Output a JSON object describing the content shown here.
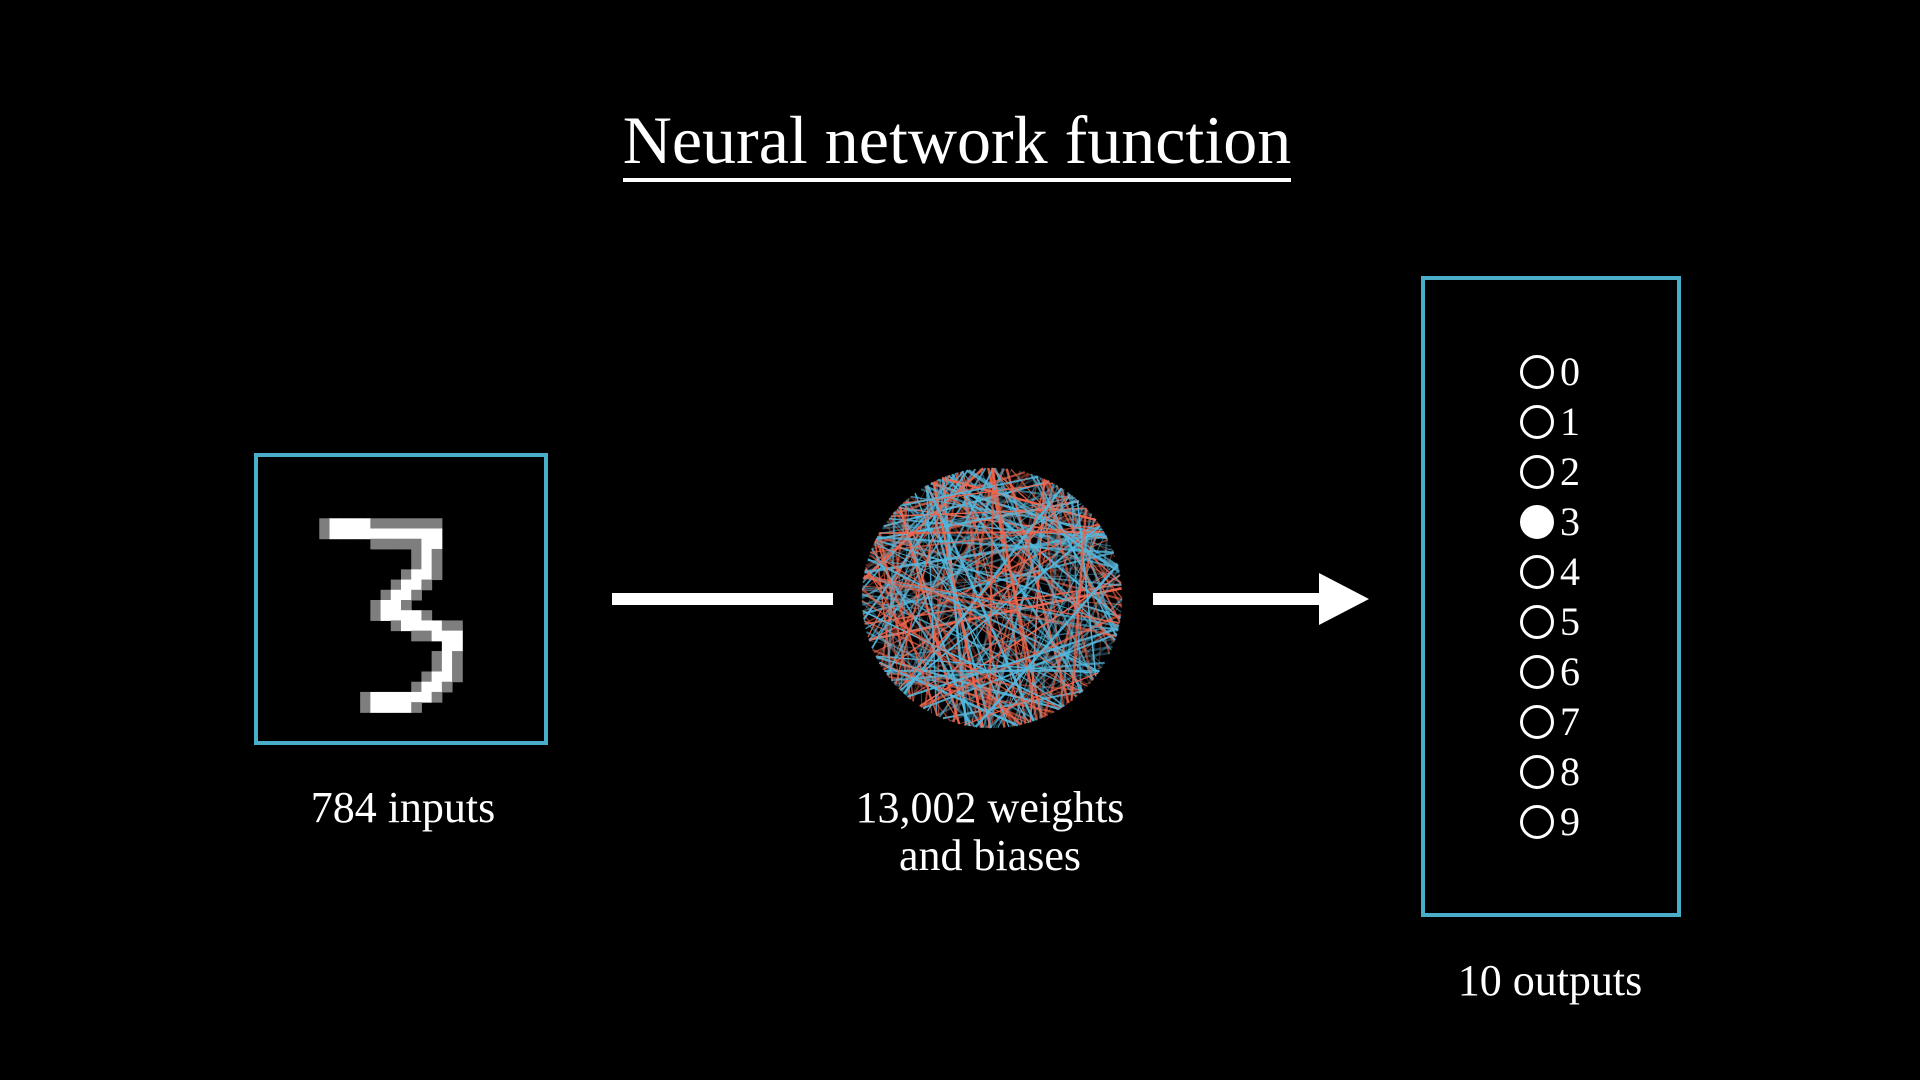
{
  "title": "Neural network function",
  "input": {
    "label": "784 inputs",
    "digit_shown": "3"
  },
  "network": {
    "label_line1": "13,002 weights",
    "label_line2": "and biases"
  },
  "output": {
    "label": "10 outputs",
    "digits": [
      "0",
      "1",
      "2",
      "3",
      "4",
      "5",
      "6",
      "7",
      "8",
      "9"
    ],
    "active_index": 3
  },
  "colors": {
    "box": "#4aaecb",
    "line_red": "#f0644a",
    "line_blue": "#52b8de",
    "background": "#000000"
  }
}
